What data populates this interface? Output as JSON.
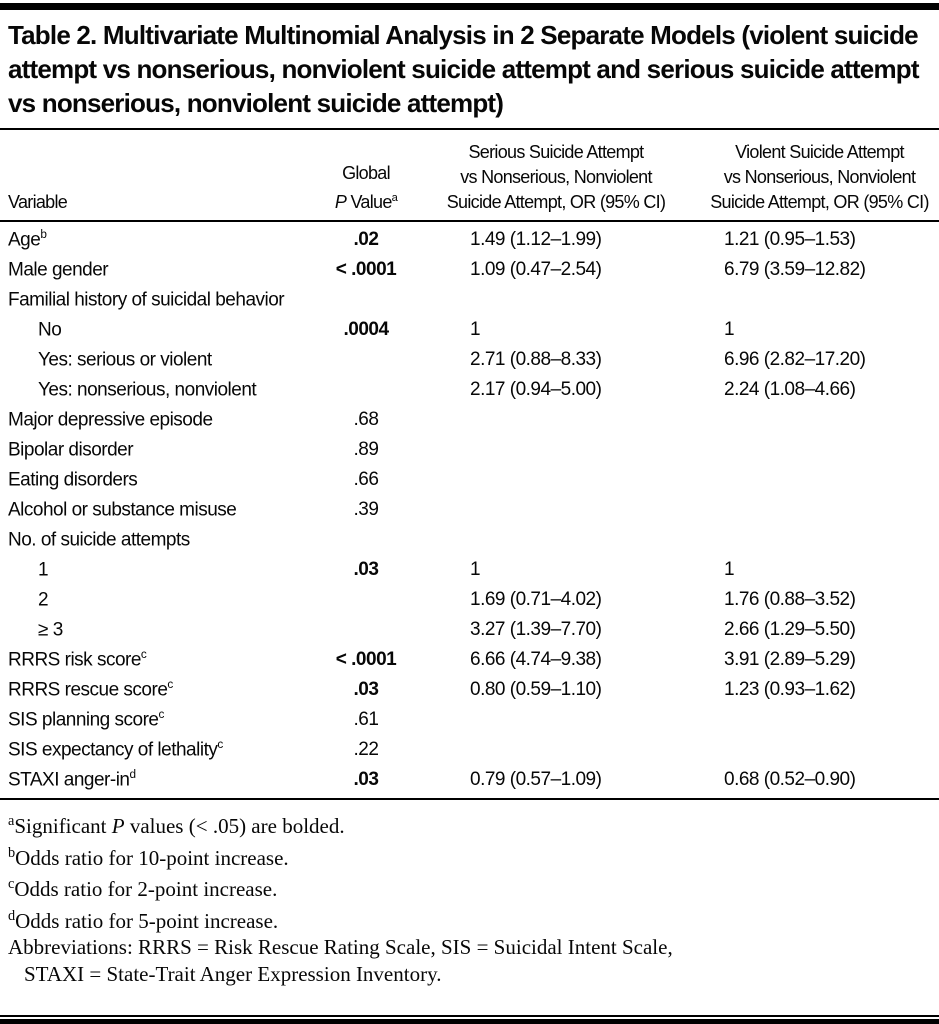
{
  "table": {
    "title": "Table 2. Multivariate Multinomial Analysis in 2 Separate Models (violent suicide attempt vs nonserious, nonviolent suicide attempt and serious suicide attempt vs nonserious, nonviolent suicide attempt)",
    "header": {
      "variable": "Variable",
      "global_p": {
        "line1": "Global",
        "italic": "P",
        "rest": " Value",
        "sup": "a"
      },
      "serious": {
        "line1": "Serious Suicide Attempt",
        "line2": "vs Nonserious, Nonviolent",
        "line3": "Suicide Attempt, OR (95% CI)"
      },
      "violent": {
        "line1": "Violent Suicide Attempt",
        "line2": "vs Nonserious, Nonviolent",
        "line3": "Suicide Attempt, OR (95% CI)"
      }
    },
    "rows": [
      {
        "label": "Age",
        "sup": "b",
        "p": ".02",
        "sig": "true",
        "serious": "1.49 (1.12–1.99)",
        "violent": "1.21 (0.95–1.53)"
      },
      {
        "label": "Male gender",
        "p": "< .0001",
        "sig": "true",
        "serious": "1.09 (0.47–2.54)",
        "violent": "6.79 (3.59–12.82)"
      },
      {
        "label": "Familial history of suicidal behavior"
      },
      {
        "label": "No",
        "p": ".0004",
        "sig": "true",
        "serious": "1",
        "violent": "1"
      },
      {
        "label": "Yes: serious or violent",
        "serious": "2.71 (0.88–8.33)",
        "violent": "6.96 (2.82–17.20)"
      },
      {
        "label": "Yes: nonserious, nonviolent",
        "serious": "2.17 (0.94–5.00)",
        "violent": "2.24 (1.08–4.66)"
      },
      {
        "label": "Major depressive episode",
        "p": ".68",
        "sig": "false"
      },
      {
        "label": "Bipolar disorder",
        "p": ".89",
        "sig": "false"
      },
      {
        "label": "Eating disorders",
        "p": ".66",
        "sig": "false"
      },
      {
        "label": "Alcohol or substance misuse",
        "p": ".39",
        "sig": "false"
      },
      {
        "label": "No. of suicide attempts"
      },
      {
        "label": "1",
        "p": ".03",
        "sig": "true",
        "serious": "1",
        "violent": "1"
      },
      {
        "label": "2",
        "serious": "1.69 (0.71–4.02)",
        "violent": "1.76 (0.88–3.52)"
      },
      {
        "label": "≥ 3",
        "serious": "3.27 (1.39–7.70)",
        "violent": "2.66 (1.29–5.50)"
      },
      {
        "label": "RRRS risk score",
        "sup": "c",
        "p": "< .0001",
        "sig": "true",
        "serious": "6.66 (4.74–9.38)",
        "violent": "3.91 (2.89–5.29)"
      },
      {
        "label": "RRRS rescue score",
        "sup": "c",
        "p": ".03",
        "sig": "true",
        "serious": "0.80 (0.59–1.10)",
        "violent": "1.23 (0.93–1.62)"
      },
      {
        "label": "SIS planning score",
        "sup": "c",
        "p": ".61",
        "sig": "false"
      },
      {
        "label": "SIS expectancy of lethality",
        "sup": "c",
        "p": ".22",
        "sig": "false"
      },
      {
        "label": "STAXI anger-in",
        "sup": "d",
        "p": ".03",
        "sig": "true",
        "serious": "0.79 (0.57–1.09)",
        "violent": "0.68 (0.52–0.90)"
      }
    ],
    "footnotes": [
      {
        "sup": "a",
        "pre": "Significant ",
        "italic": "P",
        "post": " values (< .05) are bolded."
      },
      {
        "sup": "b",
        "post": "Odds ratio for 10-point increase."
      },
      {
        "sup": "c",
        "post": "Odds ratio for 2-point increase."
      },
      {
        "sup": "d",
        "post": "Odds ratio for 5-point increase."
      }
    ],
    "abbreviations": {
      "line1": "Abbreviations: RRRS = Risk Rescue Rating Scale, SIS = Suicidal Intent Scale,",
      "line2": "STAXI = State-Trait Anger Expression Inventory."
    }
  }
}
